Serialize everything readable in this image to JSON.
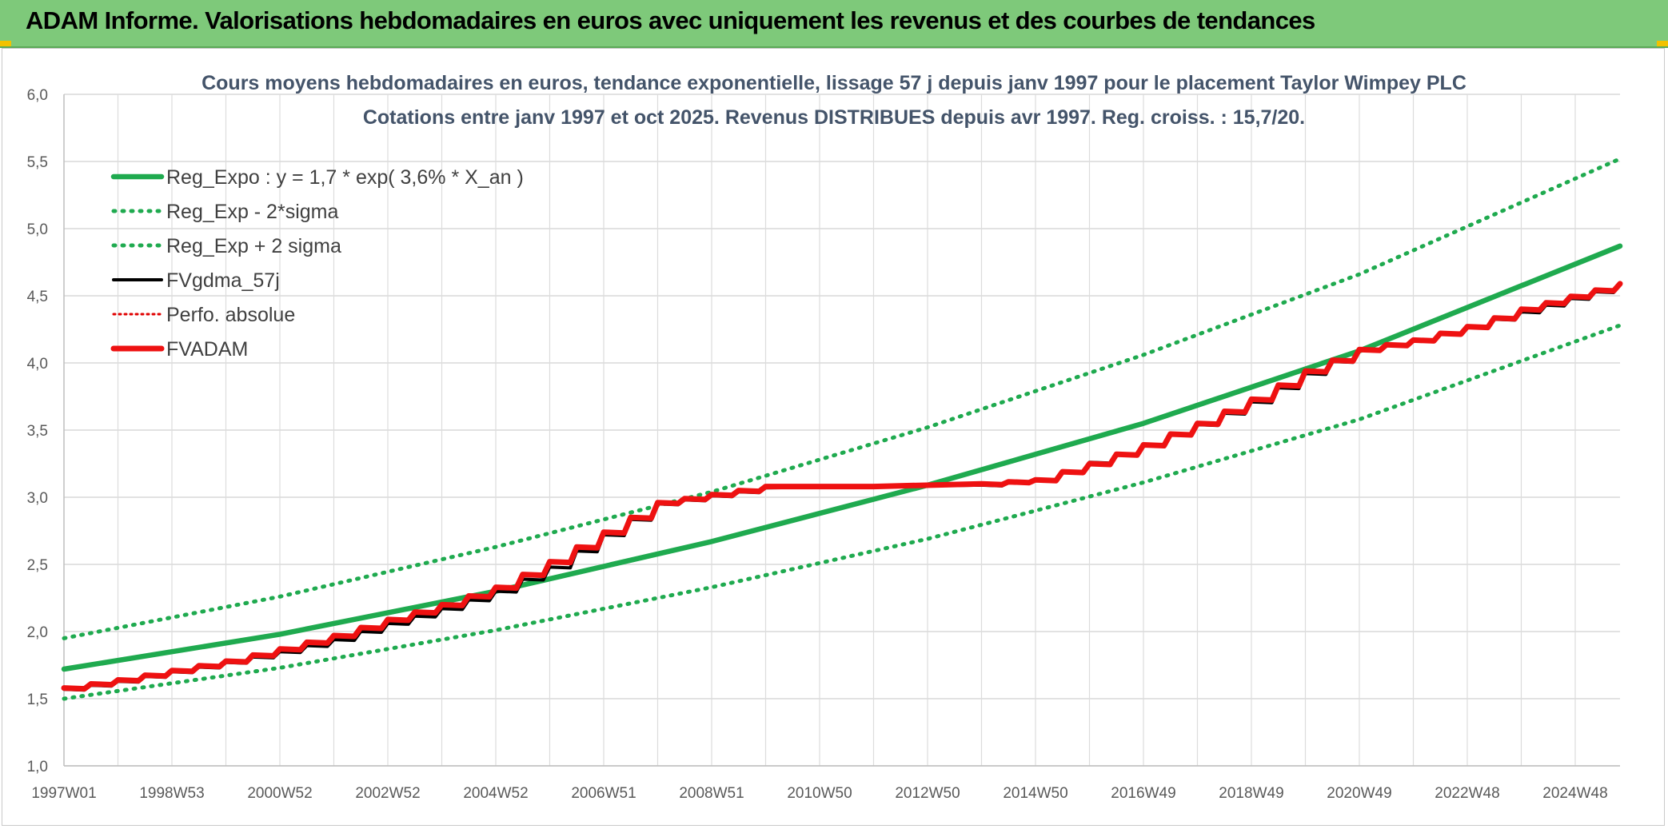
{
  "header": {
    "title": "ADAM Informe. Valorisations hebdomadaires en euros avec uniquement les revenus et des courbes de tendances"
  },
  "chart_data": {
    "type": "line",
    "title": "Cours moyens hebdomadaires en euros, tendance exponentielle, lissage 57 j depuis janv 1997 pour le placement Taylor Wimpey PLC",
    "subtitle": "Cotations entre janv 1997 et oct 2025. Revenus DISTRIBUES depuis avr 1997. Reg. croiss. : 15,7/20.",
    "xlabel": "",
    "ylabel": "",
    "ylim": [
      1.0,
      6.0
    ],
    "xlim": [
      1997.0,
      2025.83
    ],
    "grid": true,
    "legend_position": "top-left",
    "y_ticks": [
      "1,0",
      "1,5",
      "2,0",
      "2,5",
      "3,0",
      "3,5",
      "4,0",
      "4,5",
      "5,0",
      "5,5",
      "6,0"
    ],
    "x_ticks": [
      {
        "label": "1997W01",
        "x": 1997.0
      },
      {
        "label": "1998W53",
        "x": 1999.0
      },
      {
        "label": "2000W52",
        "x": 2001.0
      },
      {
        "label": "2002W52",
        "x": 2003.0
      },
      {
        "label": "2004W52",
        "x": 2005.0
      },
      {
        "label": "2006W51",
        "x": 2007.0
      },
      {
        "label": "2008W51",
        "x": 2009.0
      },
      {
        "label": "2010W50",
        "x": 2011.0
      },
      {
        "label": "2012W50",
        "x": 2013.0
      },
      {
        "label": "2014W50",
        "x": 2015.0
      },
      {
        "label": "2016W49",
        "x": 2017.0
      },
      {
        "label": "2018W49",
        "x": 2019.0
      },
      {
        "label": "2020W49",
        "x": 2021.0
      },
      {
        "label": "2022W48",
        "x": 2023.0
      },
      {
        "label": "2024W48",
        "x": 2025.0
      }
    ],
    "series": [
      {
        "name": "Reg_Expo : y = 1,7 * exp( 3,6% *  X_an )",
        "color": "#1faa4f",
        "style": "solid",
        "x": [
          1997.0,
          2001.0,
          2005.0,
          2009.0,
          2013.0,
          2017.0,
          2021.0,
          2025.83
        ],
        "values": [
          1.72,
          1.98,
          2.3,
          2.67,
          3.09,
          3.55,
          4.09,
          4.87
        ]
      },
      {
        "name": "Reg_Exp - 2*sigma",
        "color": "#1faa4f",
        "style": "dotted",
        "x": [
          1997.0,
          2001.0,
          2005.0,
          2009.0,
          2013.0,
          2017.0,
          2021.0,
          2025.83
        ],
        "values": [
          1.5,
          1.73,
          2.01,
          2.33,
          2.69,
          3.11,
          3.58,
          4.28
        ]
      },
      {
        "name": "Reg_Exp + 2 sigma",
        "color": "#1faa4f",
        "style": "dotted",
        "x": [
          1997.0,
          2001.0,
          2005.0,
          2009.0,
          2013.0,
          2017.0,
          2021.0,
          2025.83
        ],
        "values": [
          1.95,
          2.26,
          2.63,
          3.04,
          3.52,
          4.06,
          4.66,
          5.52
        ]
      },
      {
        "name": "FVgdma_57j",
        "color": "#000000",
        "style": "solid",
        "x": [
          1997.0,
          1998.0,
          1999.0,
          2000.0,
          2001.0,
          2002.0,
          2003.0,
          2004.0,
          2005.0,
          2006.0,
          2007.0,
          2008.0,
          2010.0,
          2012.0,
          2014.0,
          2015.0,
          2016.0,
          2017.0,
          2018.0,
          2019.0,
          2020.0,
          2021.0,
          2022.0,
          2023.0,
          2024.0,
          2025.83
        ],
        "values": [
          1.57,
          1.63,
          1.7,
          1.77,
          1.85,
          1.94,
          2.06,
          2.17,
          2.3,
          2.48,
          2.72,
          2.95,
          3.07,
          3.08,
          3.09,
          3.13,
          3.26,
          3.39,
          3.54,
          3.71,
          3.92,
          4.1,
          4.17,
          4.27,
          4.38,
          4.58
        ]
      },
      {
        "name": "Perfo. absolue",
        "color": "#e00000",
        "style": "dotted",
        "x": [
          1997.0,
          1998.0,
          1999.0,
          2000.0,
          2001.0,
          2002.0,
          2003.0,
          2004.0,
          2005.0,
          2006.0,
          2007.0,
          2008.0,
          2010.0,
          2012.0,
          2014.0,
          2015.0,
          2016.0,
          2017.0,
          2018.0,
          2019.0,
          2020.0,
          2021.0,
          2022.0,
          2023.0,
          2024.0,
          2025.83
        ],
        "values": [
          1.58,
          1.64,
          1.71,
          1.78,
          1.87,
          1.97,
          2.09,
          2.2,
          2.33,
          2.52,
          2.74,
          2.96,
          3.08,
          3.08,
          3.1,
          3.13,
          3.25,
          3.39,
          3.55,
          3.73,
          3.94,
          4.1,
          4.17,
          4.27,
          4.4,
          4.59
        ]
      },
      {
        "name": "FVADAM",
        "color": "#ee1111",
        "style": "solid",
        "x": [
          1997.0,
          1998.0,
          1999.0,
          2000.0,
          2001.0,
          2002.0,
          2003.0,
          2004.0,
          2005.0,
          2006.0,
          2007.0,
          2008.0,
          2010.0,
          2012.0,
          2014.0,
          2015.0,
          2016.0,
          2017.0,
          2018.0,
          2019.0,
          2020.0,
          2021.0,
          2022.0,
          2023.0,
          2024.0,
          2025.83
        ],
        "values": [
          1.58,
          1.64,
          1.71,
          1.78,
          1.87,
          1.97,
          2.09,
          2.2,
          2.33,
          2.52,
          2.74,
          2.96,
          3.08,
          3.08,
          3.1,
          3.13,
          3.25,
          3.39,
          3.55,
          3.73,
          3.94,
          4.1,
          4.17,
          4.27,
          4.4,
          4.59
        ]
      }
    ]
  }
}
